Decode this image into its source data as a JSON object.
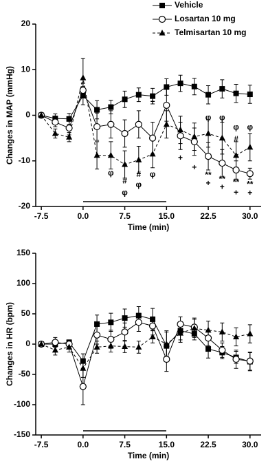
{
  "chart_data": [
    {
      "type": "line",
      "legend": "top-right",
      "xlabel": "Time (min)",
      "ylabel": "Changes in MAP (mmHg)",
      "x": [
        -7.5,
        -5,
        -2.5,
        0,
        2.5,
        5,
        7.5,
        10,
        12.5,
        15,
        17.5,
        20,
        22.5,
        25,
        27.5,
        30
      ],
      "xlim": [
        -8.5,
        32
      ],
      "xticks": [
        -7.5,
        {
          "value": 0,
          "label": "0.0"
        },
        7.5,
        {
          "value": 15,
          "label": "15.0"
        },
        22.5,
        {
          "value": 30,
          "label": "30.0"
        }
      ],
      "ylim": [
        -20,
        20
      ],
      "yticks": [
        20,
        10,
        0,
        -10,
        -20
      ],
      "series": [
        {
          "name": "Vehicle",
          "color": "#000000",
          "marker": "square",
          "dashed": false,
          "values": [
            0,
            -0.7,
            -0.8,
            4.3,
            1.2,
            1.8,
            3.5,
            4.5,
            4.2,
            6.2,
            7.0,
            6.3,
            4.5,
            5.8,
            4.8,
            4.6
          ],
          "errors": [
            0.3,
            1,
            1.2,
            2,
            2,
            1.5,
            1.8,
            1.5,
            1.7,
            1.8,
            1.8,
            1.8,
            2,
            2,
            2,
            2
          ]
        },
        {
          "name": "Losartan 10 mg",
          "color": "#000000",
          "marker": "circle",
          "dashed": false,
          "values": [
            0,
            -1.5,
            -2.8,
            5.5,
            -2.5,
            -2,
            -4,
            -2,
            -5,
            2.2,
            -4.5,
            -5.8,
            -9,
            -10.5,
            -12,
            -12.8
          ],
          "errors": [
            0.3,
            1,
            1.5,
            1.5,
            3,
            3,
            3,
            3,
            3.5,
            3.5,
            3,
            3,
            3,
            3,
            2,
            1.2
          ]
        },
        {
          "name": "Telmisartan 10 mg",
          "color": "#000000",
          "marker": "triangle",
          "dashed": true,
          "values": [
            0,
            -4,
            -4.8,
            8.2,
            -8.8,
            -8.8,
            -10.8,
            -9.8,
            -8.5,
            -2,
            -3.2,
            -4.7,
            -4,
            -5,
            -8.8,
            -7
          ],
          "errors": [
            0.3,
            1,
            1,
            4.3,
            3,
            3,
            3,
            3,
            3,
            3,
            3,
            3,
            3,
            3.5,
            3,
            3
          ]
        }
      ],
      "annotations": [
        {
          "text": "φ",
          "x": 5,
          "y": -12.7
        },
        {
          "text": "#",
          "x": 7.5,
          "y": -14.5
        },
        {
          "text": "φ",
          "x": 7.5,
          "y": -17
        },
        {
          "text": "#",
          "x": 10,
          "y": -13
        },
        {
          "text": "φ",
          "x": 10,
          "y": -15.3
        },
        {
          "text": "+",
          "x": 12.5,
          "y": 2.9
        },
        {
          "text": "φ",
          "x": 12.5,
          "y": -13
        },
        {
          "text": "+",
          "x": 17.5,
          "y": -9.4
        },
        {
          "text": "+",
          "x": 20,
          "y": -11.5
        },
        {
          "text": "φ",
          "x": 22.5,
          "y": -0.6
        },
        {
          "text": "**",
          "x": 22.5,
          "y": -13.2
        },
        {
          "text": "+",
          "x": 22.5,
          "y": -15
        },
        {
          "text": "φ",
          "x": 25,
          "y": -0.6
        },
        {
          "text": "**",
          "x": 25,
          "y": -14.1
        },
        {
          "text": "+",
          "x": 25,
          "y": -15.8
        },
        {
          "text": "φ",
          "x": 27.5,
          "y": -2.7
        },
        {
          "text": "#",
          "x": 27.5,
          "y": -5.3
        },
        {
          "text": "**",
          "x": 27.5,
          "y": -14.8
        },
        {
          "text": "+",
          "x": 27.5,
          "y": -17
        },
        {
          "text": "φ",
          "x": 30,
          "y": -2.7
        },
        {
          "text": "**",
          "x": 30,
          "y": -15.2
        },
        {
          "text": "+",
          "x": 30,
          "y": -17.1
        }
      ]
    },
    {
      "type": "line",
      "xlabel": "Time (min)",
      "ylabel": "Changes in HR (bpm)",
      "x": [
        -7.5,
        -5,
        -2.5,
        0,
        2.5,
        5,
        7.5,
        10,
        12.5,
        15,
        17.5,
        20,
        22.5,
        25,
        27.5,
        30
      ],
      "xlim": [
        -8.5,
        32
      ],
      "xticks": [
        -7.5,
        {
          "value": 0,
          "label": "0.0"
        },
        7.5,
        {
          "value": 15,
          "label": "15.0"
        },
        22.5,
        {
          "value": 30,
          "label": "30.0"
        }
      ],
      "ylim": [
        -150,
        150
      ],
      "yticks": [
        150,
        100,
        50,
        0,
        -50,
        -100,
        -150
      ],
      "series": [
        {
          "name": "Vehicle",
          "color": "#000000",
          "marker": "square",
          "dashed": false,
          "values": [
            0,
            0,
            3,
            -28,
            33,
            36,
            43,
            47,
            41,
            -3,
            22,
            17,
            -8,
            -14,
            -22,
            -29
          ],
          "errors": [
            3,
            5,
            4,
            12,
            15,
            15,
            15,
            15,
            18,
            25,
            15,
            10,
            15,
            10,
            10,
            15
          ]
        },
        {
          "name": "Losartan 10 mg",
          "color": "#000000",
          "marker": "circle",
          "dashed": false,
          "values": [
            0,
            3,
            0,
            -70,
            15,
            8,
            20,
            36,
            30,
            -25,
            33,
            28,
            10,
            -10,
            -25,
            -28
          ],
          "errors": [
            3,
            8,
            5,
            30,
            15,
            15,
            15,
            15,
            15,
            20,
            12,
            15,
            12,
            12,
            15,
            15
          ]
        },
        {
          "name": "Telmisartan 10 mg",
          "color": "#000000",
          "marker": "triangle",
          "dashed": true,
          "values": [
            0,
            -10,
            -5,
            -40,
            -5,
            -3,
            -4,
            -5,
            12,
            0,
            18,
            26,
            23,
            20,
            12,
            17
          ],
          "errors": [
            3,
            8,
            8,
            15,
            10,
            10,
            10,
            10,
            10,
            20,
            15,
            15,
            15,
            15,
            15,
            15
          ]
        }
      ]
    }
  ]
}
